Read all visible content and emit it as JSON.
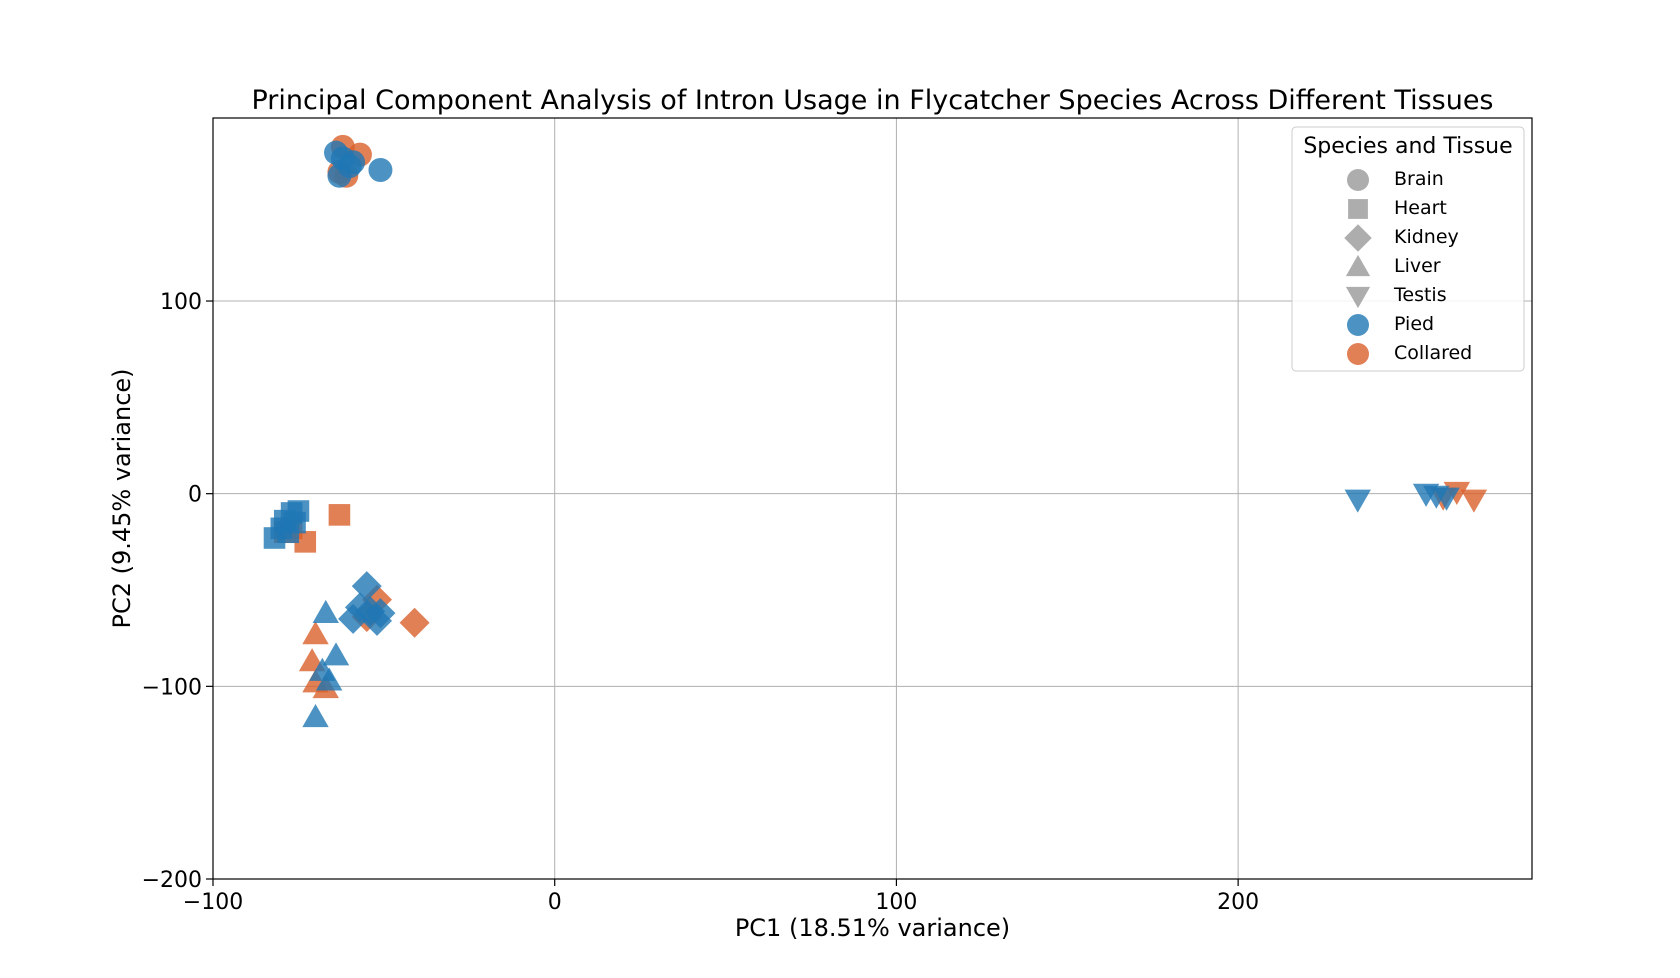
{
  "chart_data": {
    "type": "scatter",
    "title": "Principal Component Analysis of Intron Usage in Flycatcher Species Across Different Tissues",
    "xlabel": "PC1 (18.51% variance)",
    "ylabel": "PC2 (9.45% variance)",
    "xlim": [
      -100,
      286
    ],
    "ylim": [
      -200,
      195
    ],
    "xticks": [
      -100,
      0,
      100,
      200
    ],
    "xtick_labels": [
      "−100",
      "0",
      "100",
      "200"
    ],
    "yticks": [
      -200,
      -100,
      0,
      100
    ],
    "ytick_labels": [
      "−200",
      "−100",
      "0",
      "100"
    ],
    "grid": true,
    "legend": {
      "title": "Species and Tissue",
      "placement": "top-right",
      "items": [
        {
          "label": "Brain",
          "marker": "circle",
          "color": "#999999"
        },
        {
          "label": "Heart",
          "marker": "square",
          "color": "#999999"
        },
        {
          "label": "Kidney",
          "marker": "diamond",
          "color": "#999999"
        },
        {
          "label": "Liver",
          "marker": "triangle-up",
          "color": "#999999"
        },
        {
          "label": "Testis",
          "marker": "triangle-down",
          "color": "#999999"
        },
        {
          "label": "Pied",
          "marker": "circle",
          "color": "#1f77b4"
        },
        {
          "label": "Collared",
          "marker": "circle",
          "color": "#d95f2b"
        }
      ]
    },
    "colors": {
      "Pied": "#1f77b4",
      "Collared": "#d95f2b"
    },
    "tissue_markers": {
      "Brain": "circle",
      "Heart": "square",
      "Kidney": "diamond",
      "Liver": "triangle-up",
      "Testis": "triangle-down"
    },
    "points": [
      {
        "tissue": "Brain",
        "species": "Collared",
        "x": -62,
        "y": 180
      },
      {
        "tissue": "Brain",
        "species": "Collared",
        "x": -57,
        "y": 176
      },
      {
        "tissue": "Brain",
        "species": "Collared",
        "x": -63,
        "y": 167
      },
      {
        "tissue": "Brain",
        "species": "Collared",
        "x": -61,
        "y": 165
      },
      {
        "tissue": "Brain",
        "species": "Pied",
        "x": -64,
        "y": 177
      },
      {
        "tissue": "Brain",
        "species": "Pied",
        "x": -62,
        "y": 174
      },
      {
        "tissue": "Brain",
        "species": "Pied",
        "x": -60,
        "y": 170
      },
      {
        "tissue": "Brain",
        "species": "Pied",
        "x": -59,
        "y": 172
      },
      {
        "tissue": "Brain",
        "species": "Pied",
        "x": -63,
        "y": 165
      },
      {
        "tissue": "Brain",
        "species": "Pied",
        "x": -51,
        "y": 168
      },
      {
        "tissue": "Heart",
        "species": "Collared",
        "x": -73,
        "y": -25
      },
      {
        "tissue": "Heart",
        "species": "Collared",
        "x": -63,
        "y": -11
      },
      {
        "tissue": "Heart",
        "species": "Collared",
        "x": -79,
        "y": -20
      },
      {
        "tissue": "Heart",
        "species": "Collared",
        "x": -77,
        "y": -18
      },
      {
        "tissue": "Heart",
        "species": "Pied",
        "x": -82,
        "y": -23
      },
      {
        "tissue": "Heart",
        "species": "Pied",
        "x": -79,
        "y": -14
      },
      {
        "tissue": "Heart",
        "species": "Pied",
        "x": -77,
        "y": -10
      },
      {
        "tissue": "Heart",
        "species": "Pied",
        "x": -80,
        "y": -18
      },
      {
        "tissue": "Heart",
        "species": "Pied",
        "x": -76,
        "y": -15
      },
      {
        "tissue": "Heart",
        "species": "Pied",
        "x": -75,
        "y": -9
      },
      {
        "tissue": "Heart",
        "species": "Pied",
        "x": -78,
        "y": -20
      },
      {
        "tissue": "Kidney",
        "species": "Collared",
        "x": -52,
        "y": -55
      },
      {
        "tissue": "Kidney",
        "species": "Collared",
        "x": -41,
        "y": -67
      },
      {
        "tissue": "Kidney",
        "species": "Collared",
        "x": -55,
        "y": -64
      },
      {
        "tissue": "Kidney",
        "species": "Pied",
        "x": -55,
        "y": -48
      },
      {
        "tissue": "Kidney",
        "species": "Pied",
        "x": -57,
        "y": -59
      },
      {
        "tissue": "Kidney",
        "species": "Pied",
        "x": -59,
        "y": -65
      },
      {
        "tissue": "Kidney",
        "species": "Pied",
        "x": -54,
        "y": -61
      },
      {
        "tissue": "Kidney",
        "species": "Pied",
        "x": -52,
        "y": -66
      },
      {
        "tissue": "Kidney",
        "species": "Pied",
        "x": -51,
        "y": -62
      },
      {
        "tissue": "Liver",
        "species": "Collared",
        "x": -70,
        "y": -73
      },
      {
        "tissue": "Liver",
        "species": "Collared",
        "x": -71,
        "y": -87
      },
      {
        "tissue": "Liver",
        "species": "Collared",
        "x": -70,
        "y": -98
      },
      {
        "tissue": "Liver",
        "species": "Collared",
        "x": -67,
        "y": -101
      },
      {
        "tissue": "Liver",
        "species": "Pied",
        "x": -67,
        "y": -62
      },
      {
        "tissue": "Liver",
        "species": "Pied",
        "x": -64,
        "y": -84
      },
      {
        "tissue": "Liver",
        "species": "Pied",
        "x": -68,
        "y": -92
      },
      {
        "tissue": "Liver",
        "species": "Pied",
        "x": -66,
        "y": -97
      },
      {
        "tissue": "Liver",
        "species": "Pied",
        "x": -70,
        "y": -116
      },
      {
        "tissue": "Testis",
        "species": "Collared",
        "x": 260,
        "y": -2
      },
      {
        "tissue": "Testis",
        "species": "Collared",
        "x": 264,
        "y": 1
      },
      {
        "tissue": "Testis",
        "species": "Collared",
        "x": 269,
        "y": -3
      },
      {
        "tissue": "Testis",
        "species": "Pied",
        "x": 235,
        "y": -3
      },
      {
        "tissue": "Testis",
        "species": "Pied",
        "x": 255,
        "y": 0
      },
      {
        "tissue": "Testis",
        "species": "Pied",
        "x": 258,
        "y": -1
      },
      {
        "tissue": "Testis",
        "species": "Pied",
        "x": 261,
        "y": -2
      }
    ]
  }
}
